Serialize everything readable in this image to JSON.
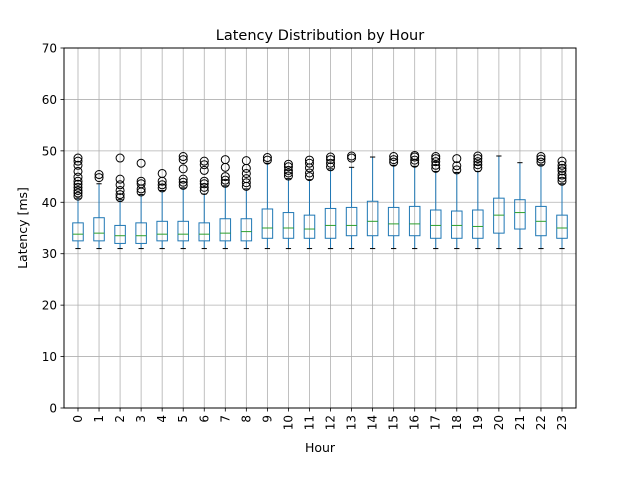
{
  "chart_data": {
    "type": "boxplot",
    "title": "Latency Distribution by Hour",
    "xlabel": "Hour",
    "ylabel": "Latency [ms]",
    "ylim": [
      0,
      70
    ],
    "yticks": [
      0,
      10,
      20,
      30,
      40,
      50,
      60,
      70
    ],
    "grid": true,
    "categories": [
      "0",
      "1",
      "2",
      "3",
      "4",
      "5",
      "6",
      "7",
      "8",
      "9",
      "10",
      "11",
      "12",
      "13",
      "14",
      "15",
      "16",
      "17",
      "18",
      "19",
      "20",
      "21",
      "22",
      "23"
    ],
    "boxes": [
      {
        "whislo": 31.0,
        "q1": 32.5,
        "med": 33.8,
        "q3": 36.0,
        "whishi": 40.8,
        "fliers": [
          41.2,
          41.8,
          42.3,
          42.9,
          43.5,
          44.1,
          44.9,
          46.0,
          47.2,
          48.0,
          48.6
        ]
      },
      {
        "whislo": 31.0,
        "q1": 32.5,
        "med": 34.0,
        "q3": 37.0,
        "whishi": 43.6,
        "fliers": [
          44.8,
          45.4
        ]
      },
      {
        "whislo": 31.0,
        "q1": 32.0,
        "med": 33.5,
        "q3": 35.5,
        "whishi": 40.5,
        "fliers": [
          40.9,
          41.5,
          42.3,
          43.4,
          44.5,
          48.6
        ]
      },
      {
        "whislo": 31.0,
        "q1": 32.0,
        "med": 33.5,
        "q3": 36.0,
        "whishi": 41.5,
        "fliers": [
          42.0,
          42.6,
          43.6,
          44.1,
          47.6
        ]
      },
      {
        "whislo": 31.0,
        "q1": 32.5,
        "med": 33.8,
        "q3": 36.3,
        "whishi": 42.3,
        "fliers": [
          42.8,
          43.4,
          44.1,
          45.6
        ]
      },
      {
        "whislo": 31.0,
        "q1": 32.5,
        "med": 33.8,
        "q3": 36.3,
        "whishi": 42.8,
        "fliers": [
          43.3,
          43.9,
          44.5,
          46.5,
          48.3,
          48.9
        ]
      },
      {
        "whislo": 31.0,
        "q1": 32.5,
        "med": 33.8,
        "q3": 36.0,
        "whishi": 41.6,
        "fliers": [
          42.3,
          42.9,
          43.6,
          44.1,
          46.2,
          47.3,
          48.0
        ]
      },
      {
        "whislo": 31.0,
        "q1": 32.5,
        "med": 34.0,
        "q3": 36.8,
        "whishi": 43.2,
        "fliers": [
          43.7,
          44.3,
          45.0,
          46.8,
          48.3
        ]
      },
      {
        "whislo": 31.0,
        "q1": 32.5,
        "med": 34.3,
        "q3": 36.8,
        "whishi": 42.6,
        "fliers": [
          43.1,
          43.8,
          44.6,
          45.6,
          46.6,
          48.1
        ]
      },
      {
        "whislo": 31.0,
        "q1": 33.0,
        "med": 35.0,
        "q3": 38.7,
        "whishi": 47.6,
        "fliers": [
          48.2,
          48.7
        ]
      },
      {
        "whislo": 31.0,
        "q1": 33.0,
        "med": 35.0,
        "q3": 38.0,
        "whishi": 44.6,
        "fliers": [
          45.1,
          45.7,
          46.2,
          46.9,
          47.4
        ]
      },
      {
        "whislo": 31.0,
        "q1": 33.0,
        "med": 34.8,
        "q3": 37.5,
        "whishi": 44.4,
        "fliers": [
          45.0,
          45.7,
          46.7,
          47.6,
          48.2
        ]
      },
      {
        "whislo": 31.0,
        "q1": 33.0,
        "med": 35.5,
        "q3": 38.8,
        "whishi": 46.5,
        "fliers": [
          46.9,
          47.6,
          48.3,
          48.8
        ]
      },
      {
        "whislo": 31.0,
        "q1": 33.5,
        "med": 35.5,
        "q3": 39.0,
        "whishi": 46.8,
        "fliers": [
          48.6,
          49.0
        ]
      },
      {
        "whislo": 31.0,
        "q1": 33.5,
        "med": 36.3,
        "q3": 40.2,
        "whishi": 48.8,
        "fliers": []
      },
      {
        "whislo": 31.0,
        "q1": 33.5,
        "med": 35.8,
        "q3": 39.0,
        "whishi": 47.2,
        "fliers": [
          47.8,
          48.3,
          48.9
        ]
      },
      {
        "whislo": 31.0,
        "q1": 33.5,
        "med": 35.8,
        "q3": 39.2,
        "whishi": 47.0,
        "fliers": [
          47.6,
          48.2,
          48.8,
          49.1
        ]
      },
      {
        "whislo": 31.0,
        "q1": 33.0,
        "med": 35.5,
        "q3": 38.5,
        "whishi": 46.0,
        "fliers": [
          46.6,
          47.2,
          47.9,
          48.5,
          48.9
        ]
      },
      {
        "whislo": 31.0,
        "q1": 33.0,
        "med": 35.5,
        "q3": 38.3,
        "whishi": 45.8,
        "fliers": [
          46.3,
          47.1,
          48.5
        ]
      },
      {
        "whislo": 31.0,
        "q1": 33.0,
        "med": 35.3,
        "q3": 38.5,
        "whishi": 46.0,
        "fliers": [
          46.7,
          47.3,
          47.9,
          48.5,
          49.0
        ]
      },
      {
        "whislo": 31.0,
        "q1": 34.0,
        "med": 37.5,
        "q3": 40.8,
        "whishi": 49.0,
        "fliers": []
      },
      {
        "whislo": 31.0,
        "q1": 34.8,
        "med": 38.0,
        "q3": 40.5,
        "whishi": 47.7,
        "fliers": []
      },
      {
        "whislo": 31.0,
        "q1": 33.5,
        "med": 36.3,
        "q3": 39.2,
        "whishi": 47.3,
        "fliers": [
          47.8,
          48.4,
          48.9
        ]
      },
      {
        "whislo": 31.0,
        "q1": 33.0,
        "med": 35.0,
        "q3": 37.5,
        "whishi": 43.6,
        "fliers": [
          44.1,
          44.7,
          45.3,
          46.1,
          46.6,
          47.2,
          48.0
        ]
      }
    ]
  },
  "colors": {
    "box": "#1f77b4",
    "median": "#2ca02c",
    "whisker": "#1f77b4",
    "cap": "#000000",
    "flier": "#000000",
    "grid": "#b0b0b0",
    "axis": "#000000"
  }
}
